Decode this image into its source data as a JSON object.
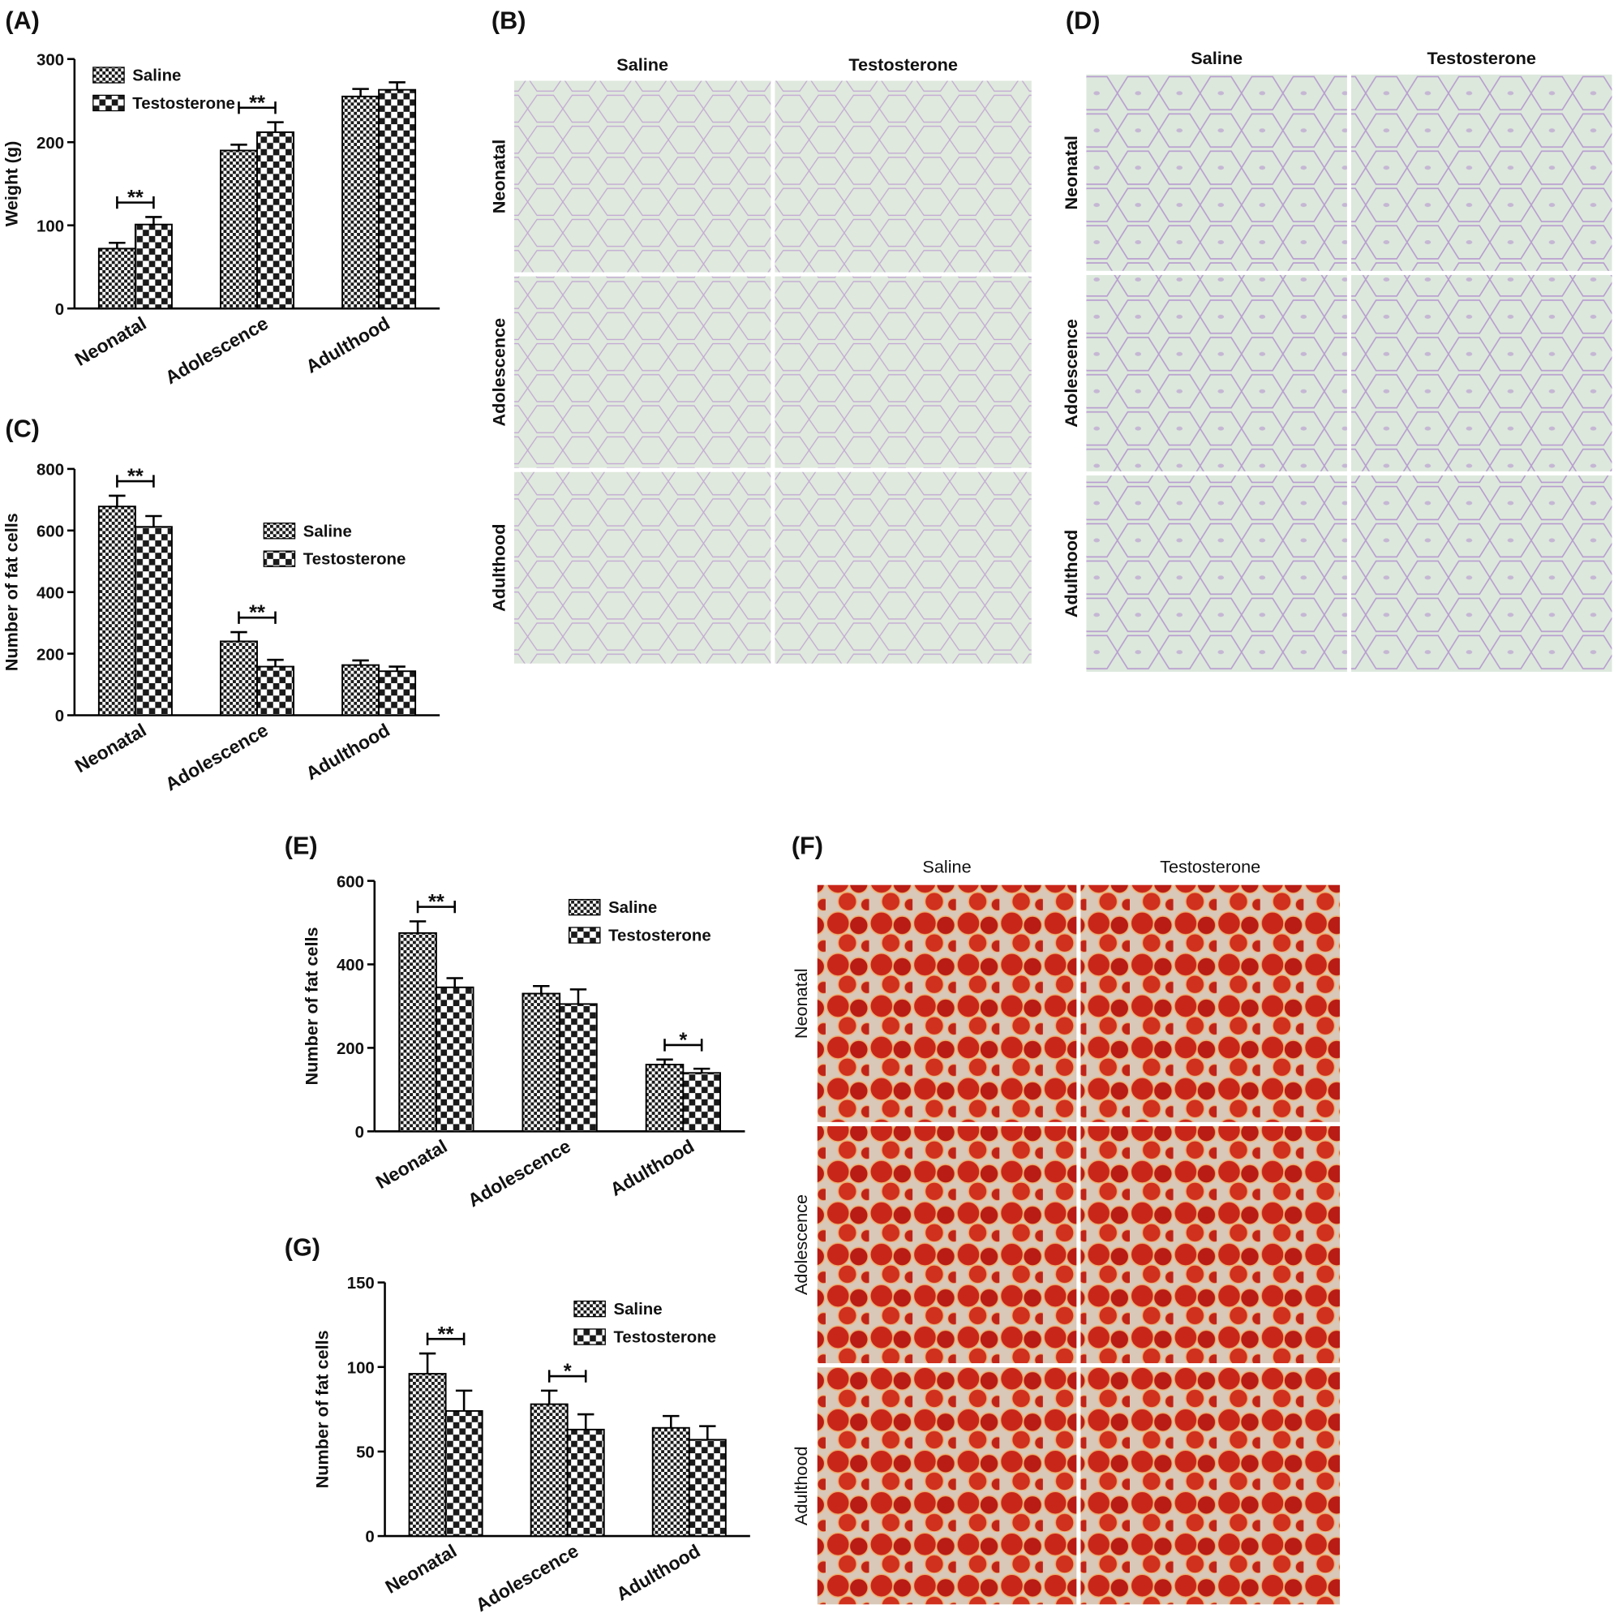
{
  "chart_data": [
    {
      "type": "bar",
      "label": "(A)",
      "y_label": "Weight (g)",
      "categories": [
        "Neonatal",
        "Adolescence",
        "Adulthood"
      ],
      "series": [
        {
          "name": "Saline",
          "color": "#1a1a1a",
          "values": [
            72,
            190,
            255
          ],
          "errors": [
            7,
            7,
            9
          ]
        },
        {
          "name": "Testosterone",
          "color": "#1a1a1a",
          "values": [
            101,
            212,
            263
          ],
          "errors": [
            9,
            12,
            9
          ]
        }
      ],
      "ylim": [
        0,
        300
      ],
      "yticks": [
        0,
        100,
        200,
        300
      ],
      "legend": "upper left",
      "annotations": [
        {
          "text": "**",
          "category": "Neonatal"
        },
        {
          "text": "**",
          "category": "Adolescence"
        }
      ]
    },
    {
      "type": "bar",
      "label": "(C)",
      "y_label": "Number of fat cells",
      "categories": [
        "Neonatal",
        "Adolescence",
        "Adulthood"
      ],
      "series": [
        {
          "name": "Saline",
          "color": "#1a1a1a",
          "values": [
            678,
            240,
            163
          ],
          "errors": [
            35,
            30,
            15
          ]
        },
        {
          "name": "Testosterone",
          "color": "#1a1a1a",
          "values": [
            612,
            158,
            143
          ],
          "errors": [
            35,
            22,
            15
          ]
        }
      ],
      "ylim": [
        0,
        800
      ],
      "yticks": [
        0,
        200,
        400,
        600,
        800
      ],
      "legend": "center right",
      "annotations": [
        {
          "text": "**",
          "category": "Neonatal"
        },
        {
          "text": "**",
          "category": "Adolescence"
        }
      ]
    },
    {
      "type": "bar",
      "label": "(E)",
      "y_label": "Number of fat cells",
      "categories": [
        "Neonatal",
        "Adolescence",
        "Adulthood"
      ],
      "series": [
        {
          "name": "Saline",
          "color": "#1a1a1a",
          "values": [
            475,
            330,
            160
          ],
          "errors": [
            28,
            18,
            12
          ]
        },
        {
          "name": "Testosterone",
          "color": "#1a1a1a",
          "values": [
            345,
            305,
            140
          ],
          "errors": [
            22,
            35,
            10
          ]
        }
      ],
      "ylim": [
        0,
        600
      ],
      "yticks": [
        0,
        200,
        400,
        600
      ],
      "legend": "upper right",
      "annotations": [
        {
          "text": "**",
          "category": "Neonatal"
        },
        {
          "text": "*",
          "category": "Adulthood"
        }
      ]
    },
    {
      "type": "bar",
      "label": "(G)",
      "y_label": "Number of fat cells",
      "categories": [
        "Neonatal",
        "Adolescence",
        "Adulthood"
      ],
      "series": [
        {
          "name": "Saline",
          "color": "#1a1a1a",
          "values": [
            96,
            78,
            64
          ],
          "errors": [
            12,
            8,
            7
          ]
        },
        {
          "name": "Testosterone",
          "color": "#1a1a1a",
          "values": [
            74,
            63,
            57
          ],
          "errors": [
            12,
            9,
            8
          ]
        }
      ],
      "ylim": [
        0,
        150
      ],
      "yticks": [
        0,
        50,
        100,
        150
      ],
      "legend": "upper right",
      "annotations": [
        {
          "text": "**",
          "category": "Neonatal"
        },
        {
          "text": "*",
          "category": "Adolescence"
        }
      ]
    }
  ],
  "image_panels": [
    {
      "label": "(B)",
      "columns": [
        "Saline",
        "Testosterone"
      ],
      "rows": [
        "Neonatal",
        "Adolescence",
        "Adulthood"
      ]
    },
    {
      "label": "(D)",
      "columns": [
        "Saline",
        "Testosterone"
      ],
      "rows": [
        "Neonatal",
        "Adolescence",
        "Adulthood"
      ]
    },
    {
      "label": "(F)",
      "columns": [
        "Saline",
        "Testosterone"
      ],
      "rows": [
        "Neonatal",
        "Adolescence",
        "Adulthood"
      ]
    }
  ]
}
